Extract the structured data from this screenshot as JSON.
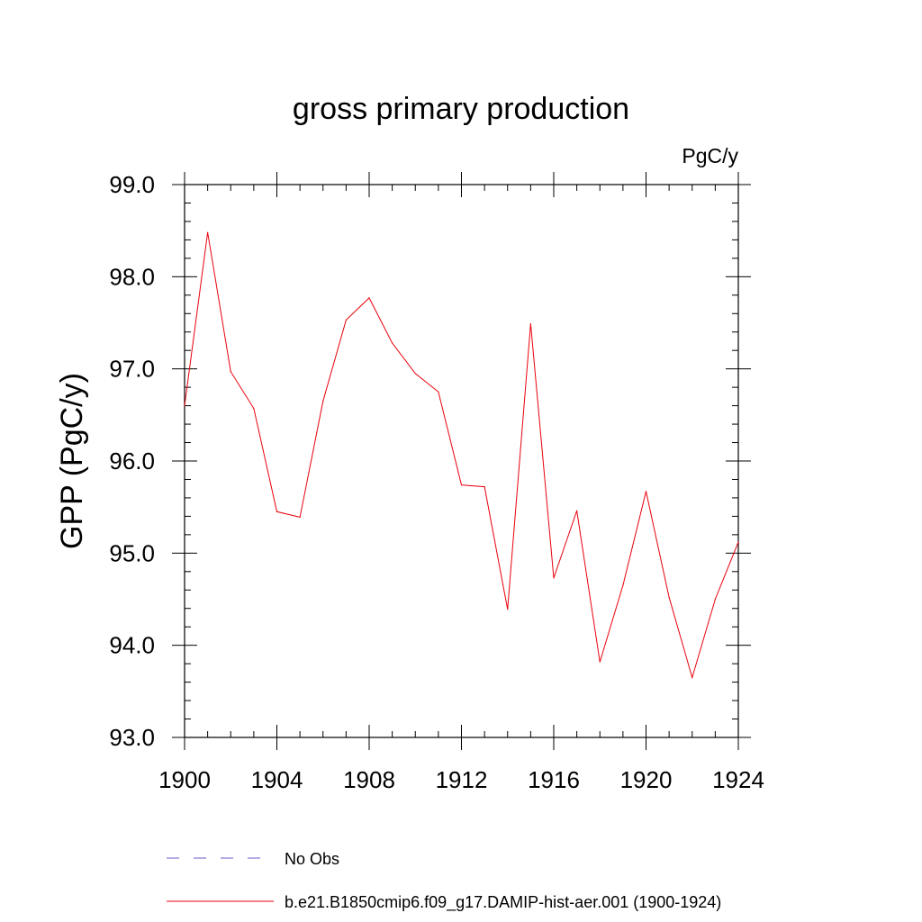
{
  "chart_data": {
    "type": "line",
    "title": "gross primary production",
    "units_label": "PgC/y",
    "ylabel": "GPP  (PgC/y)",
    "xlabel": "",
    "xlim": [
      1900,
      1924
    ],
    "ylim": [
      93.0,
      99.0
    ],
    "grid": false,
    "x_ticks": [
      "1900",
      "1904",
      "1908",
      "1912",
      "1916",
      "1920",
      "1924"
    ],
    "y_ticks": [
      "93.0",
      "94.0",
      "95.0",
      "96.0",
      "97.0",
      "98.0",
      "99.0"
    ],
    "legend_position": "bottom",
    "legend": [
      {
        "label": "No Obs",
        "color": "#6a5acd",
        "style": "dashed"
      },
      {
        "label": "b.e21.B1850cmip6.f09_g17.DAMIP-hist-aer.001 (1900-1924)",
        "color": "#e8000b",
        "style": "solid"
      }
    ],
    "series": [
      {
        "name": "b.e21.B1850cmip6.f09_g17.DAMIP-hist-aer.001 (1900-1924)",
        "color": "#e8000b",
        "x": [
          1900,
          1901,
          1902,
          1903,
          1904,
          1905,
          1906,
          1907,
          1908,
          1909,
          1910,
          1911,
          1912,
          1913,
          1914,
          1915,
          1916,
          1917,
          1918,
          1919,
          1920,
          1921,
          1922,
          1923,
          1924
        ],
        "y": [
          96.6,
          98.48,
          96.97,
          96.57,
          95.45,
          95.39,
          96.65,
          97.53,
          97.77,
          97.28,
          96.95,
          96.75,
          95.74,
          95.72,
          94.39,
          97.49,
          94.73,
          95.46,
          93.82,
          94.65,
          95.67,
          94.52,
          93.65,
          94.5,
          95.12
        ]
      }
    ]
  }
}
